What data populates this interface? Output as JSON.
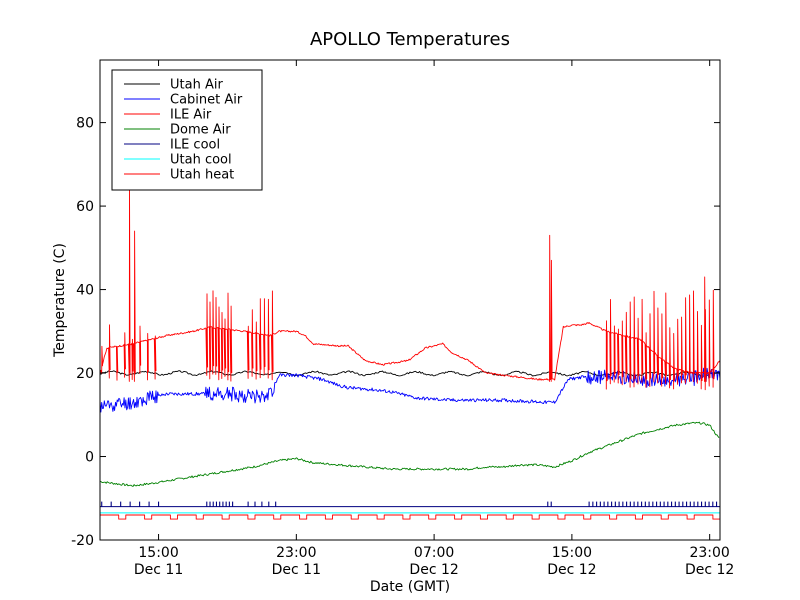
{
  "chart_data": {
    "type": "line",
    "title": "APOLLO Temperatures",
    "xlabel": "Date (GMT)",
    "ylabel": "Temperature (C)",
    "ylim": [
      -20,
      95
    ],
    "xlim_hours": [
      11.6,
      47.6
    ],
    "x_unit": "hours since Dec 11 00:00 GMT",
    "y_ticks": [
      -20,
      0,
      20,
      40,
      60,
      80
    ],
    "x_ticks": [
      {
        "hour": 15,
        "label1": "15:00",
        "label2": "Dec 11"
      },
      {
        "hour": 23,
        "label1": "23:00",
        "label2": "Dec 11"
      },
      {
        "hour": 31,
        "label1": "07:00",
        "label2": "Dec 12"
      },
      {
        "hour": 39,
        "label1": "15:00",
        "label2": "Dec 12"
      },
      {
        "hour": 47,
        "label1": "23:00",
        "label2": "Dec 12"
      }
    ],
    "legend_position": "top-left",
    "series": [
      {
        "name": "Utah Air",
        "color": "#000000",
        "kind": "wobble",
        "x": [
          11.6,
          47.6
        ],
        "y": [
          20,
          19.8
        ],
        "wobble": 0.4
      },
      {
        "name": "Cabinet Air",
        "color": "#0000ff",
        "kind": "line",
        "x": [
          11.6,
          12.5,
          13.5,
          14.5,
          15.5,
          17,
          19,
          20.5,
          21.5,
          22,
          23,
          24.5,
          25.5,
          26,
          27.5,
          28.5,
          30,
          32,
          33.5,
          34,
          35,
          36.5,
          37.5,
          38,
          38.8,
          39.5,
          41,
          42,
          43,
          44,
          45,
          46,
          46.5,
          47.6
        ],
        "y": [
          12,
          12.5,
          13,
          14,
          15,
          15,
          15,
          14.5,
          15,
          19.5,
          19.5,
          18.5,
          17,
          16.5,
          16,
          15.5,
          14,
          13.5,
          13.5,
          13.5,
          13.5,
          13.2,
          13,
          13,
          18.5,
          19,
          19,
          19,
          18.5,
          18,
          18.5,
          18.5,
          19.5,
          19.5
        ]
      },
      {
        "name": "ILE Air",
        "color": "#ff0000",
        "kind": "line",
        "x": [
          11.6,
          12,
          13.5,
          14.5,
          15.5,
          17,
          18,
          20,
          21.5,
          22,
          23,
          23.5,
          24,
          25.5,
          26,
          27,
          28,
          29.5,
          30.5,
          31.5,
          32,
          33,
          34,
          35,
          36,
          37,
          37.5,
          38,
          38.5,
          39,
          39.5,
          40,
          41,
          42,
          43,
          44,
          45,
          46,
          47,
          47.6
        ],
        "y": [
          20,
          26,
          27,
          28,
          29,
          30,
          31,
          30,
          29,
          30,
          30,
          29,
          27,
          26.5,
          26.5,
          23,
          22,
          23,
          26,
          27,
          25,
          23,
          20,
          19.5,
          19,
          18.5,
          18.5,
          18.5,
          31,
          31.5,
          31.5,
          32,
          30,
          29,
          28,
          24,
          21,
          20,
          20,
          23
        ]
      },
      {
        "name": "Dome Air",
        "color": "#008000",
        "kind": "line",
        "x": [
          11.6,
          12.5,
          13.5,
          14.5,
          16,
          17.5,
          19,
          20.5,
          22,
          23,
          24,
          25.5,
          27,
          28.5,
          30,
          31.5,
          33,
          34,
          35,
          36,
          37,
          38,
          39,
          40,
          41,
          42,
          43,
          44,
          45,
          46,
          46.5,
          47,
          47.6
        ],
        "y": [
          -6,
          -6.5,
          -7,
          -6.5,
          -5.5,
          -4.5,
          -3.5,
          -2.5,
          -1,
          -0.5,
          -1.5,
          -2,
          -2.5,
          -3,
          -3,
          -3,
          -3,
          -2.5,
          -2.5,
          -2,
          -2,
          -2.5,
          -1,
          1,
          2.5,
          4,
          5.5,
          6.5,
          7.5,
          8,
          8,
          7.5,
          4
        ]
      },
      {
        "name": "ILE cool",
        "color": "#000080",
        "kind": "flat",
        "x": [
          11.6,
          47.6
        ],
        "y": [
          -12,
          -12
        ]
      },
      {
        "name": "Utah cool",
        "color": "#00ffff",
        "kind": "flat",
        "x": [
          11.6,
          47.6
        ],
        "y": [
          -13.5,
          -13.5
        ]
      },
      {
        "name": "Utah heat",
        "color": "#ff0000",
        "kind": "square",
        "x": [
          11.6,
          47.6
        ],
        "y_low": -15,
        "y_high": -14,
        "period_hours": 1.5
      }
    ],
    "spikes": {
      "ile_air_groups": [
        {
          "start": 11.7,
          "end": 14.8,
          "count": 8,
          "base": 18,
          "peak": 32
        },
        {
          "start": 17.8,
          "end": 19.2,
          "count": 9,
          "base": 18,
          "peak": 40
        },
        {
          "start": 20.2,
          "end": 21.6,
          "count": 7,
          "base": 18,
          "peak": 42
        },
        {
          "start": 41,
          "end": 47.2,
          "count": 28,
          "base": 16,
          "peak": 40
        }
      ],
      "ile_air_singles": [
        {
          "hour": 13.3,
          "peak": 65
        },
        {
          "hour": 13.6,
          "peak": 54
        },
        {
          "hour": 37.7,
          "peak": 53
        },
        {
          "hour": 37.8,
          "peak": 47
        },
        {
          "hour": 46.7,
          "peak": 43
        }
      ],
      "ile_cool_pulse_groups": [
        {
          "start": 11.7,
          "end": 15.0,
          "count": 7
        },
        {
          "start": 17.8,
          "end": 19.3,
          "count": 9
        },
        {
          "start": 20.2,
          "end": 21.8,
          "count": 5
        },
        {
          "start": 37.6,
          "end": 37.8,
          "count": 2
        },
        {
          "start": 40.0,
          "end": 47.4,
          "count": 35
        }
      ]
    }
  }
}
